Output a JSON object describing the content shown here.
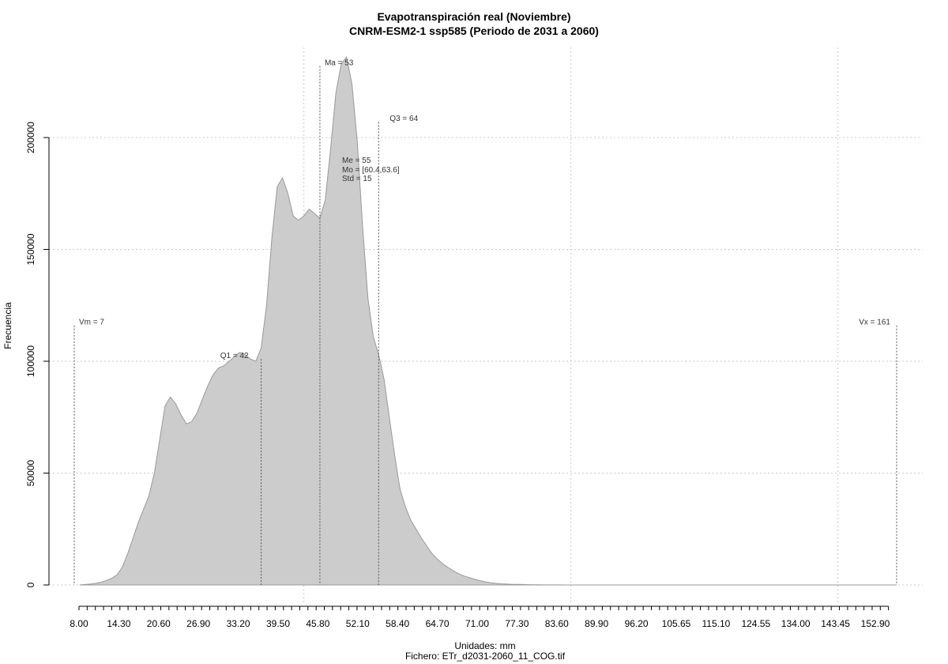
{
  "chart_data": {
    "type": "area",
    "title": "Evapotranspiración real (Noviembre)",
    "subtitle": "CNRM-ESM2-1 ssp585 (Periodo de 2031 a 2060)",
    "xlabel": "Unidades: mm",
    "ylabel": "Frecuencia",
    "file_label": "Fichero: ETr_d2031-2060_11_COG.tif",
    "xlim": [
      7,
      161
    ],
    "ylim": [
      0,
      235000
    ],
    "grid": true,
    "fill_color": "#cccccc",
    "line_color": "#999999",
    "x_tick_labels": [
      "8.00",
      "14.30",
      "20.60",
      "26.90",
      "33.20",
      "39.50",
      "45.80",
      "52.10",
      "58.40",
      "64.70",
      "71.00",
      "77.30",
      "83.60",
      "89.90",
      "96.20",
      "105.65",
      "115.10",
      "124.55",
      "134.00",
      "143.45",
      "152.90"
    ],
    "y_ticks": [
      0,
      50000,
      100000,
      150000,
      200000
    ],
    "y_tick_labels": [
      "0",
      "50000",
      "100000",
      "150000",
      "200000"
    ],
    "x_grid": [
      50,
      100,
      150
    ],
    "x": [
      8,
      9,
      10,
      11,
      12,
      13,
      14,
      15,
      16,
      17,
      18,
      19,
      20,
      21,
      22,
      23,
      24,
      25,
      26,
      27,
      28,
      29,
      30,
      31,
      32,
      33,
      34,
      35,
      36,
      37,
      38,
      39,
      40,
      41,
      42,
      43,
      44,
      45,
      46,
      47,
      48,
      49,
      50,
      51,
      52,
      53,
      54,
      55,
      56,
      57,
      58,
      59,
      60,
      61,
      62,
      63,
      64,
      65,
      66,
      67,
      68,
      69,
      70,
      71,
      72,
      73,
      74,
      75,
      76,
      77,
      78,
      79,
      80,
      81,
      82,
      83,
      84,
      85,
      86,
      87,
      88,
      89,
      90,
      91,
      92,
      93,
      94,
      95,
      96,
      97,
      98,
      99,
      100,
      102,
      104,
      106,
      108,
      110,
      115,
      120,
      130,
      140,
      150,
      161
    ],
    "y": [
      0,
      200,
      400,
      700,
      1200,
      2000,
      3000,
      4500,
      8000,
      14000,
      21000,
      28000,
      34000,
      40000,
      50000,
      65000,
      80000,
      84000,
      81000,
      76000,
      72000,
      73000,
      77000,
      83000,
      89000,
      94000,
      97000,
      98000,
      100000,
      102000,
      104000,
      103000,
      101000,
      100000,
      106000,
      125000,
      155000,
      178000,
      182000,
      175000,
      165000,
      163000,
      165000,
      168000,
      166000,
      164000,
      172000,
      195000,
      220000,
      233000,
      236000,
      224000,
      198000,
      160000,
      128000,
      111000,
      103000,
      92000,
      75000,
      58000,
      43000,
      35000,
      29000,
      25000,
      21000,
      17500,
      14000,
      11500,
      9500,
      7800,
      6300,
      5000,
      4000,
      3200,
      2500,
      1900,
      1400,
      1000,
      700,
      500,
      400,
      300,
      250,
      200,
      150,
      100,
      80,
      50,
      40,
      30,
      20,
      10,
      5,
      4,
      3,
      2,
      1,
      1,
      1,
      0,
      0,
      0,
      0,
      0
    ],
    "reference_lines": [
      {
        "value": 7,
        "label": "Vm = 7",
        "top": 116000
      },
      {
        "value": 42,
        "label": "Q1 = 42",
        "top": 101000
      },
      {
        "value": 53,
        "label": "Ma = 53",
        "top": 232000
      },
      {
        "value": 64,
        "label": "Q3 = 64",
        "top": 207000
      },
      {
        "value": 161,
        "label": "Vx = 161",
        "top": 116000
      }
    ],
    "stats_text": [
      "Me = 55",
      "Mo = [60.4,63.6]",
      "Std = 15"
    ]
  }
}
